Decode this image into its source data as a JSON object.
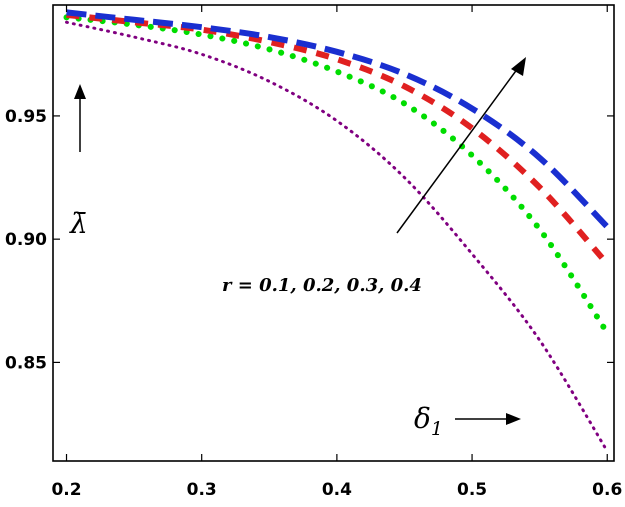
{
  "chart_data": {
    "type": "line",
    "title": "",
    "xlabel": "δ1",
    "ylabel": "λ̄",
    "xlim": [
      0.19,
      0.605
    ],
    "ylim": [
      0.81,
      0.995
    ],
    "x_ticks": [
      0.2,
      0.3,
      0.4,
      0.5,
      0.6
    ],
    "x_tick_labels": [
      "0.2",
      "0.3",
      "0.4",
      "0.5",
      "0.6"
    ],
    "y_ticks": [
      0.85,
      0.9,
      0.95
    ],
    "y_tick_labels": [
      "0.85",
      "0.90",
      "0.95"
    ],
    "grid": false,
    "legend": "none",
    "annotation": "r = 0.1, 0.2, 0.3, 0.4",
    "x": [
      0.2,
      0.25,
      0.3,
      0.35,
      0.4,
      0.45,
      0.5,
      0.55,
      0.6
    ],
    "series": [
      {
        "color": "#800080",
        "style": "dotted-fine",
        "values": [
          0.988,
          0.982,
          0.975,
          0.964,
          0.948,
          0.925,
          0.894,
          0.859,
          0.814
        ]
      },
      {
        "color": "#00dd00",
        "style": "dotted",
        "values": [
          0.99,
          0.987,
          0.983,
          0.977,
          0.968,
          0.955,
          0.934,
          0.904,
          0.862
        ]
      },
      {
        "color": "#e02020",
        "style": "dashed",
        "values": [
          0.991,
          0.988,
          0.985,
          0.98,
          0.973,
          0.962,
          0.945,
          0.921,
          0.89
        ]
      },
      {
        "color": "#1a2fd0",
        "style": "dashed-long",
        "values": [
          0.992,
          0.989,
          0.986,
          0.982,
          0.976,
          0.967,
          0.953,
          0.933,
          0.905
        ]
      }
    ]
  }
}
